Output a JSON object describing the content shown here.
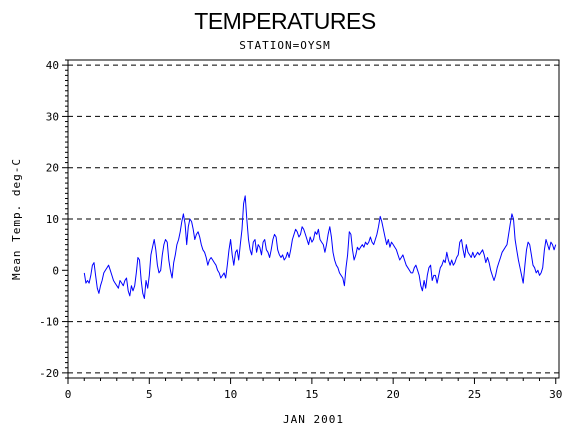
{
  "chart_data": {
    "type": "line",
    "title": "TEMPERATURES",
    "subtitle": "STATION=OYSM",
    "xlabel": "JAN 2001",
    "ylabel": "Mean Temp. deg-C",
    "xlim": [
      0,
      30.2
    ],
    "ylim": [
      -21,
      41
    ],
    "xticks": [
      0,
      5,
      10,
      15,
      20,
      25,
      30
    ],
    "yticks": [
      -20,
      -10,
      0,
      10,
      20,
      30,
      40
    ],
    "ytick_labels": [
      "-20",
      "-10",
      "0",
      "10",
      "20",
      "30",
      "40"
    ],
    "gridlines_y": [
      -20,
      -10,
      10,
      20,
      30,
      40
    ],
    "grid_style": "dashed horizontal",
    "series": [
      {
        "color": "#0000ff",
        "x": [
          1.0,
          1.1,
          1.2,
          1.3,
          1.4,
          1.5,
          1.6,
          1.7,
          1.8,
          1.9,
          2.0,
          2.1,
          2.2,
          2.3,
          2.4,
          2.5,
          2.6,
          2.7,
          2.8,
          2.9,
          3.0,
          3.1,
          3.2,
          3.3,
          3.4,
          3.5,
          3.6,
          3.7,
          3.8,
          3.9,
          4.0,
          4.1,
          4.2,
          4.3,
          4.4,
          4.5,
          4.6,
          4.7,
          4.8,
          4.9,
          5.0,
          5.1,
          5.2,
          5.3,
          5.4,
          5.5,
          5.6,
          5.7,
          5.8,
          5.9,
          6.0,
          6.1,
          6.2,
          6.3,
          6.4,
          6.5,
          6.6,
          6.7,
          6.8,
          6.9,
          7.0,
          7.1,
          7.2,
          7.3,
          7.4,
          7.5,
          7.6,
          7.7,
          7.8,
          7.9,
          8.0,
          8.1,
          8.2,
          8.3,
          8.4,
          8.5,
          8.6,
          8.7,
          8.8,
          8.9,
          9.0,
          9.1,
          9.2,
          9.3,
          9.4,
          9.5,
          9.6,
          9.7,
          9.8,
          9.9,
          10.0,
          10.1,
          10.2,
          10.3,
          10.4,
          10.5,
          10.6,
          10.7,
          10.8,
          10.9,
          11.0,
          11.1,
          11.2,
          11.3,
          11.4,
          11.5,
          11.6,
          11.7,
          11.8,
          11.9,
          12.0,
          12.1,
          12.2,
          12.3,
          12.4,
          12.5,
          12.6,
          12.7,
          12.8,
          12.9,
          13.0,
          13.1,
          13.2,
          13.3,
          13.4,
          13.5,
          13.6,
          13.7,
          13.8,
          13.9,
          14.0,
          14.1,
          14.2,
          14.3,
          14.4,
          14.5,
          14.6,
          14.7,
          14.8,
          14.9,
          15.0,
          15.1,
          15.2,
          15.3,
          15.4,
          15.5,
          15.6,
          15.7,
          15.8,
          15.9,
          16.0,
          16.1,
          16.2,
          16.3,
          16.4,
          16.5,
          16.6,
          16.7,
          16.8,
          16.9,
          17.0,
          17.1,
          17.2,
          17.3,
          17.4,
          17.5,
          17.6,
          17.7,
          17.8,
          17.9,
          18.0,
          18.1,
          18.2,
          18.3,
          18.4,
          18.5,
          18.6,
          18.7,
          18.8,
          18.9,
          19.0,
          19.1,
          19.2,
          19.3,
          19.4,
          19.5,
          19.6,
          19.7,
          19.8,
          19.9,
          20.0,
          20.1,
          20.2,
          20.3,
          20.4,
          20.5,
          20.6,
          20.7,
          20.8,
          20.9,
          21.0,
          21.1,
          21.2,
          21.3,
          21.4,
          21.5,
          21.6,
          21.7,
          21.8,
          21.9,
          22.0,
          22.1,
          22.2,
          22.3,
          22.4,
          22.5,
          22.6,
          22.7,
          22.8,
          22.9,
          23.0,
          23.1,
          23.2,
          23.3,
          23.4,
          23.5,
          23.6,
          23.7,
          23.8,
          23.9,
          24.0,
          24.1,
          24.2,
          24.3,
          24.4,
          24.5,
          24.6,
          24.7,
          24.8,
          24.9,
          25.0,
          25.1,
          25.2,
          25.3,
          25.4,
          25.5,
          25.6,
          25.7,
          25.8,
          25.9,
          26.0,
          26.1,
          26.2,
          26.3,
          26.4,
          26.5,
          26.6,
          26.7,
          26.8,
          26.9,
          27.0,
          27.1,
          27.2,
          27.3,
          27.4,
          27.5,
          27.6,
          27.7,
          27.8,
          27.9,
          28.0,
          28.1,
          28.2,
          28.3,
          28.4,
          28.5,
          28.6,
          28.7,
          28.8,
          28.9,
          29.0,
          29.1,
          29.2,
          29.3,
          29.4,
          29.5,
          29.6,
          29.7,
          29.8,
          29.9,
          30.0
        ],
        "y": [
          -0.5,
          -2.5,
          -2.0,
          -2.5,
          -1.0,
          1.0,
          1.5,
          -1.0,
          -3.5,
          -4.5,
          -3.0,
          -2.0,
          -0.5,
          0.0,
          0.5,
          1.0,
          0.0,
          -1.0,
          -2.0,
          -2.5,
          -3.0,
          -3.5,
          -2.0,
          -2.5,
          -3.0,
          -2.0,
          -1.5,
          -4.0,
          -5.0,
          -3.0,
          -4.0,
          -3.0,
          -0.5,
          2.5,
          2.0,
          -2.0,
          -4.5,
          -5.5,
          -2.0,
          -3.5,
          -1.0,
          3.0,
          4.5,
          6.0,
          4.0,
          1.0,
          -0.5,
          0.0,
          3.0,
          5.0,
          6.0,
          5.5,
          2.0,
          0.0,
          -1.5,
          1.5,
          3.0,
          5.0,
          6.0,
          7.5,
          9.5,
          11.0,
          9.0,
          5.0,
          8.5,
          10.0,
          9.5,
          8.0,
          6.0,
          7.0,
          7.5,
          6.5,
          5.0,
          4.0,
          3.5,
          2.5,
          1.0,
          2.0,
          2.5,
          2.0,
          1.5,
          1.0,
          0.0,
          -0.5,
          -1.5,
          -1.0,
          -0.5,
          -1.5,
          1.0,
          4.0,
          6.0,
          3.0,
          1.0,
          3.5,
          4.0,
          2.0,
          5.0,
          8.0,
          13.0,
          14.5,
          10.0,
          6.0,
          4.0,
          3.0,
          5.5,
          6.0,
          3.5,
          5.0,
          4.5,
          3.0,
          5.5,
          6.0,
          4.0,
          3.5,
          2.5,
          4.0,
          6.0,
          7.0,
          6.5,
          4.0,
          3.0,
          2.5,
          3.0,
          2.0,
          2.5,
          3.5,
          2.5,
          4.0,
          6.0,
          7.0,
          8.0,
          7.5,
          6.5,
          7.0,
          8.5,
          8.0,
          7.0,
          6.0,
          5.0,
          6.5,
          5.5,
          6.0,
          7.5,
          7.0,
          8.0,
          6.0,
          5.5,
          5.0,
          3.5,
          5.0,
          7.0,
          8.5,
          6.5,
          3.5,
          2.0,
          1.0,
          0.5,
          -0.5,
          -1.0,
          -1.5,
          -3.0,
          0.5,
          3.0,
          7.5,
          7.0,
          4.0,
          2.0,
          3.0,
          4.5,
          4.0,
          4.5,
          5.0,
          4.5,
          5.5,
          5.0,
          5.5,
          6.5,
          5.5,
          5.0,
          6.0,
          7.0,
          8.5,
          10.5,
          9.5,
          8.0,
          6.5,
          5.0,
          6.0,
          4.5,
          5.5,
          5.0,
          4.5,
          4.0,
          3.0,
          2.0,
          2.5,
          3.0,
          2.0,
          1.0,
          0.5,
          0.0,
          -0.5,
          -0.5,
          0.5,
          1.0,
          0.0,
          -1.0,
          -3.0,
          -4.0,
          -2.0,
          -3.5,
          -1.0,
          0.5,
          1.0,
          -2.0,
          -1.0,
          -1.0,
          -2.5,
          -1.0,
          0.5,
          1.0,
          2.0,
          1.5,
          3.5,
          2.0,
          1.0,
          2.0,
          1.0,
          1.5,
          2.5,
          3.0,
          5.5,
          6.0,
          4.0,
          2.5,
          5.0,
          3.5,
          3.0,
          2.5,
          3.5,
          2.5,
          3.0,
          3.5,
          3.0,
          3.5,
          4.0,
          3.0,
          1.5,
          2.5,
          1.5,
          0.0,
          -1.0,
          -2.0,
          -1.0,
          0.5,
          1.5,
          2.5,
          3.5,
          4.0,
          4.5,
          5.0,
          7.0,
          9.0,
          11.0,
          10.0,
          6.0,
          4.0,
          2.0,
          0.5,
          -1.0,
          -2.5,
          1.0,
          4.0,
          5.5,
          5.0,
          3.0,
          1.0,
          0.5,
          -0.5,
          0.0,
          -1.0,
          -0.5,
          0.5,
          4.0,
          6.0,
          5.0,
          4.0,
          5.5,
          5.0,
          4.0,
          5.0
        ]
      }
    ]
  }
}
